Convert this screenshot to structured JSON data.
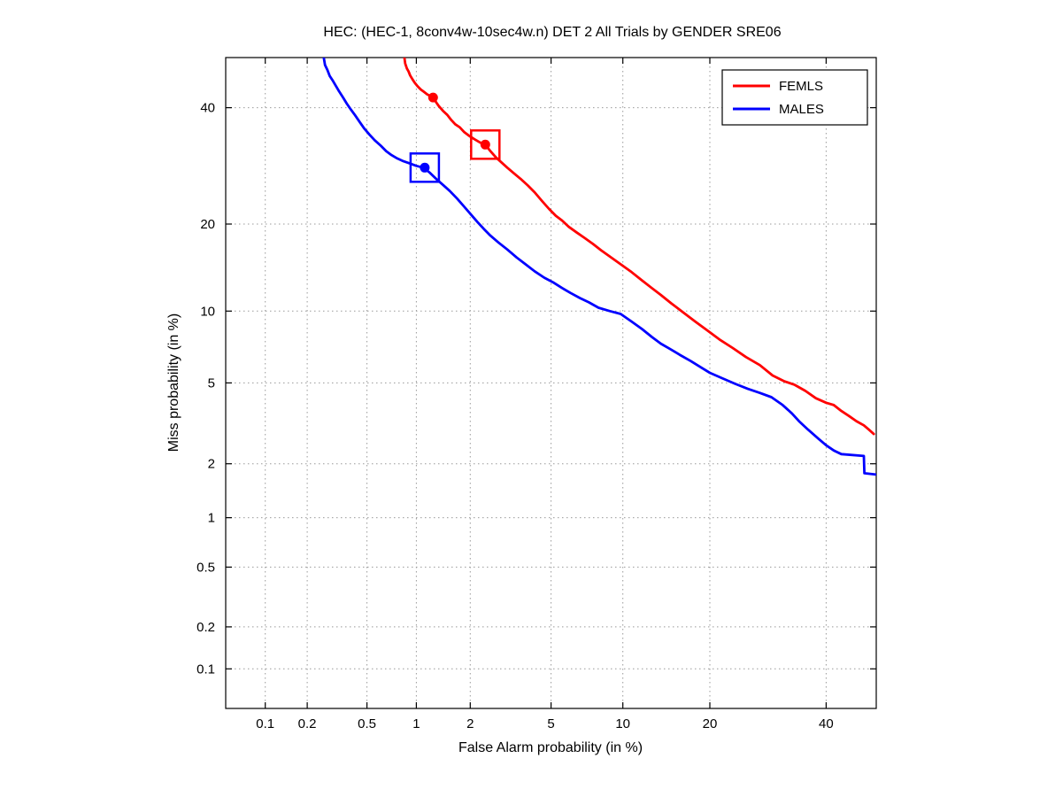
{
  "figure": {
    "background": "#ffffff"
  },
  "chart_data": {
    "type": "line",
    "variant": "DET-curve (probit-probit scale)",
    "title": "HEC: (HEC-1, 8conv4w-10sec4w.n) DET 2 All Trials by GENDER SRE06",
    "xlabel": "False Alarm probability (in %)",
    "ylabel": "Miss probability (in %)",
    "xlim": [
      0.05,
      50
    ],
    "ylim": [
      0.05,
      50
    ],
    "x_ticks": [
      0.1,
      0.2,
      0.5,
      1,
      2,
      5,
      10,
      20,
      40
    ],
    "x_tick_labels": [
      "0.1",
      "0.2",
      "0.5",
      "1",
      "2",
      "5",
      "10",
      "20",
      "40"
    ],
    "y_ticks": [
      40,
      20,
      10,
      5,
      2,
      1,
      0.5,
      0.2,
      0.1
    ],
    "y_tick_labels": [
      "40",
      "20",
      "10",
      "5",
      "2",
      "1",
      "0.5",
      "0.2",
      "0.1"
    ],
    "grid": true,
    "grid_color": "#999999",
    "axis_color": "#000000",
    "legend_position": "top-right",
    "series": [
      {
        "name": "FEMLS",
        "color": "#ff0000",
        "points": [
          [
            0.85,
            50
          ],
          [
            0.86,
            48.8
          ],
          [
            0.88,
            47.8
          ],
          [
            0.9,
            47.2
          ],
          [
            0.92,
            46.4
          ],
          [
            0.95,
            45.6
          ],
          [
            0.98,
            44.9
          ],
          [
            1.02,
            44.2
          ],
          [
            1.06,
            43.6
          ],
          [
            1.1,
            43.2
          ],
          [
            1.16,
            42.6
          ],
          [
            1.22,
            42.2
          ],
          [
            1.28,
            41.4
          ],
          [
            1.34,
            40.4
          ],
          [
            1.42,
            39.4
          ],
          [
            1.5,
            38.6
          ],
          [
            1.58,
            37.6
          ],
          [
            1.66,
            36.8
          ],
          [
            1.76,
            36.2
          ],
          [
            1.86,
            35.3
          ],
          [
            1.96,
            34.7
          ],
          [
            2.1,
            34.0
          ],
          [
            2.25,
            33.4
          ],
          [
            2.4,
            33.0
          ],
          [
            2.55,
            31.8
          ],
          [
            2.72,
            30.7
          ],
          [
            2.9,
            29.8
          ],
          [
            3.1,
            28.9
          ],
          [
            3.35,
            27.9
          ],
          [
            3.6,
            27.0
          ],
          [
            3.9,
            25.9
          ],
          [
            4.2,
            24.8
          ],
          [
            4.55,
            23.4
          ],
          [
            4.9,
            22.2
          ],
          [
            5.25,
            21.2
          ],
          [
            5.6,
            20.5
          ],
          [
            6.0,
            19.6
          ],
          [
            6.5,
            18.8
          ],
          [
            7.0,
            18.1
          ],
          [
            7.6,
            17.3
          ],
          [
            8.2,
            16.5
          ],
          [
            9.0,
            15.6
          ],
          [
            9.8,
            14.8
          ],
          [
            10.8,
            13.9
          ],
          [
            11.8,
            13.0
          ],
          [
            12.8,
            12.2
          ],
          [
            13.8,
            11.5
          ],
          [
            15.0,
            10.7
          ],
          [
            16.4,
            9.9
          ],
          [
            18.0,
            9.1
          ],
          [
            19.6,
            8.4
          ],
          [
            21.4,
            7.7
          ],
          [
            23.4,
            7.1
          ],
          [
            25.5,
            6.5
          ],
          [
            27.8,
            6.0
          ],
          [
            30.0,
            5.4
          ],
          [
            32.0,
            5.1
          ],
          [
            34.0,
            4.9
          ],
          [
            36.0,
            4.6
          ],
          [
            38.0,
            4.25
          ],
          [
            40.0,
            4.05
          ],
          [
            41.5,
            3.95
          ],
          [
            43.0,
            3.7
          ],
          [
            44.5,
            3.5
          ],
          [
            46.0,
            3.3
          ],
          [
            47.5,
            3.15
          ],
          [
            48.5,
            3.0
          ],
          [
            49.5,
            2.85
          ]
        ]
      },
      {
        "name": "MALES",
        "color": "#0000ff",
        "points": [
          [
            0.26,
            50
          ],
          [
            0.265,
            48.5
          ],
          [
            0.275,
            47.5
          ],
          [
            0.285,
            46.3
          ],
          [
            0.3,
            45.3
          ],
          [
            0.315,
            44.2
          ],
          [
            0.33,
            43.2
          ],
          [
            0.35,
            42.0
          ],
          [
            0.37,
            40.8
          ],
          [
            0.39,
            39.8
          ],
          [
            0.42,
            38.5
          ],
          [
            0.45,
            37.2
          ],
          [
            0.48,
            36.0
          ],
          [
            0.52,
            34.8
          ],
          [
            0.56,
            33.8
          ],
          [
            0.61,
            32.8
          ],
          [
            0.66,
            31.8
          ],
          [
            0.71,
            31.1
          ],
          [
            0.77,
            30.5
          ],
          [
            0.84,
            30.0
          ],
          [
            0.92,
            29.6
          ],
          [
            1.0,
            29.2
          ],
          [
            1.1,
            28.9
          ],
          [
            1.2,
            28.0
          ],
          [
            1.3,
            27.0
          ],
          [
            1.42,
            26.0
          ],
          [
            1.55,
            25.0
          ],
          [
            1.7,
            23.8
          ],
          [
            1.85,
            22.6
          ],
          [
            2.0,
            21.5
          ],
          [
            2.18,
            20.3
          ],
          [
            2.36,
            19.3
          ],
          [
            2.55,
            18.4
          ],
          [
            2.8,
            17.5
          ],
          [
            3.1,
            16.6
          ],
          [
            3.45,
            15.6
          ],
          [
            3.8,
            14.8
          ],
          [
            4.2,
            14.0
          ],
          [
            4.65,
            13.3
          ],
          [
            5.1,
            12.8
          ],
          [
            5.6,
            12.2
          ],
          [
            6.1,
            11.7
          ],
          [
            6.7,
            11.2
          ],
          [
            7.3,
            10.8
          ],
          [
            8.0,
            10.3
          ],
          [
            8.9,
            10.0
          ],
          [
            9.8,
            9.75
          ],
          [
            10.8,
            9.1
          ],
          [
            11.8,
            8.5
          ],
          [
            12.8,
            7.9
          ],
          [
            13.8,
            7.4
          ],
          [
            14.8,
            7.05
          ],
          [
            16.0,
            6.65
          ],
          [
            17.4,
            6.25
          ],
          [
            18.8,
            5.85
          ],
          [
            20.0,
            5.55
          ],
          [
            21.8,
            5.25
          ],
          [
            23.8,
            4.95
          ],
          [
            25.8,
            4.7
          ],
          [
            27.8,
            4.5
          ],
          [
            29.8,
            4.3
          ],
          [
            31.8,
            3.95
          ],
          [
            33.5,
            3.6
          ],
          [
            34.8,
            3.3
          ],
          [
            36.5,
            3.0
          ],
          [
            38.5,
            2.7
          ],
          [
            40.0,
            2.5
          ],
          [
            41.5,
            2.35
          ],
          [
            43.0,
            2.25
          ],
          [
            47.5,
            2.2
          ],
          [
            47.6,
            1.78
          ],
          [
            50,
            1.75
          ]
        ]
      }
    ],
    "markers": [
      {
        "series": "FEMLS",
        "shape": "dot",
        "x": 1.25,
        "y": 42.0
      },
      {
        "series": "FEMLS",
        "shape": "square-dot",
        "x": 2.4,
        "y": 33.0
      },
      {
        "series": "MALES",
        "shape": "square-dot",
        "x": 1.12,
        "y": 28.9
      }
    ]
  }
}
